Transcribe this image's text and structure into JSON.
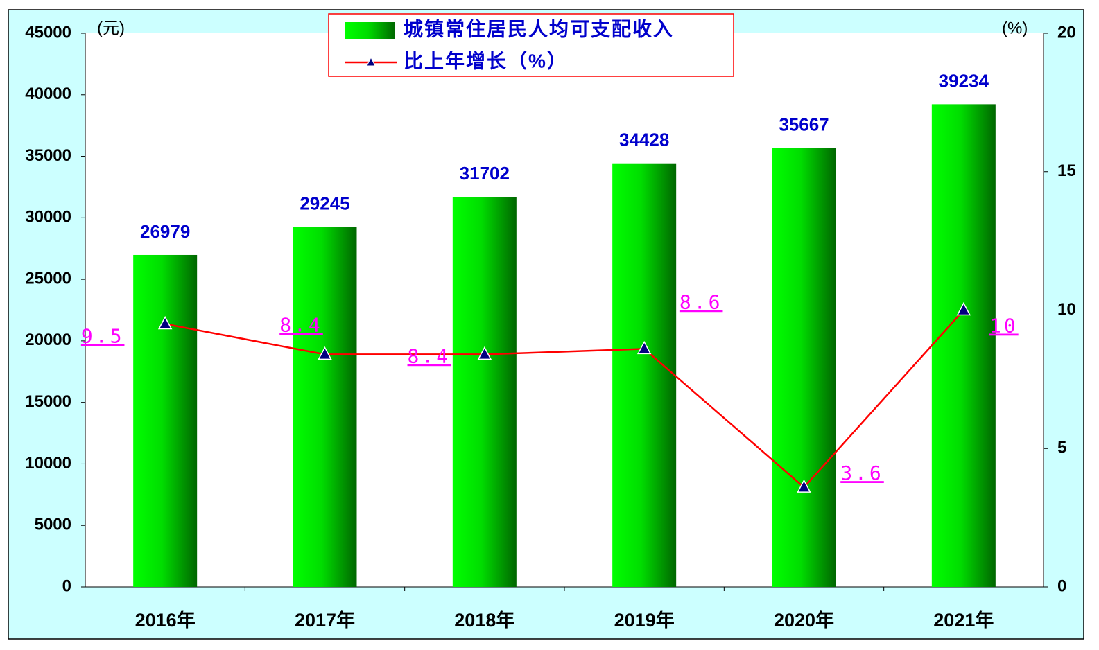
{
  "chart_data": {
    "type": "bar",
    "categories": [
      "2016年",
      "2017年",
      "2018年",
      "2019年",
      "2020年",
      "2021年"
    ],
    "series": [
      {
        "name": "城镇常住居民人均可支配收入",
        "type": "bar",
        "color": "#00cc00",
        "values": [
          26979,
          29245,
          31702,
          34428,
          35667,
          39234
        ]
      },
      {
        "name": "比上年增长（%）",
        "type": "line",
        "axis": "y2",
        "color": "#ff0000",
        "values": [
          9.5,
          8.4,
          8.4,
          8.6,
          3.6,
          10
        ]
      }
    ],
    "y_unit": "(元)",
    "y2_unit": "(%)",
    "ylim": [
      0,
      45000
    ],
    "yticks": [
      0,
      5000,
      10000,
      15000,
      20000,
      25000,
      30000,
      35000,
      40000,
      45000
    ],
    "y2lim": [
      0,
      20
    ],
    "y2ticks": [
      0,
      5,
      10,
      15,
      20
    ],
    "grid": false
  }
}
